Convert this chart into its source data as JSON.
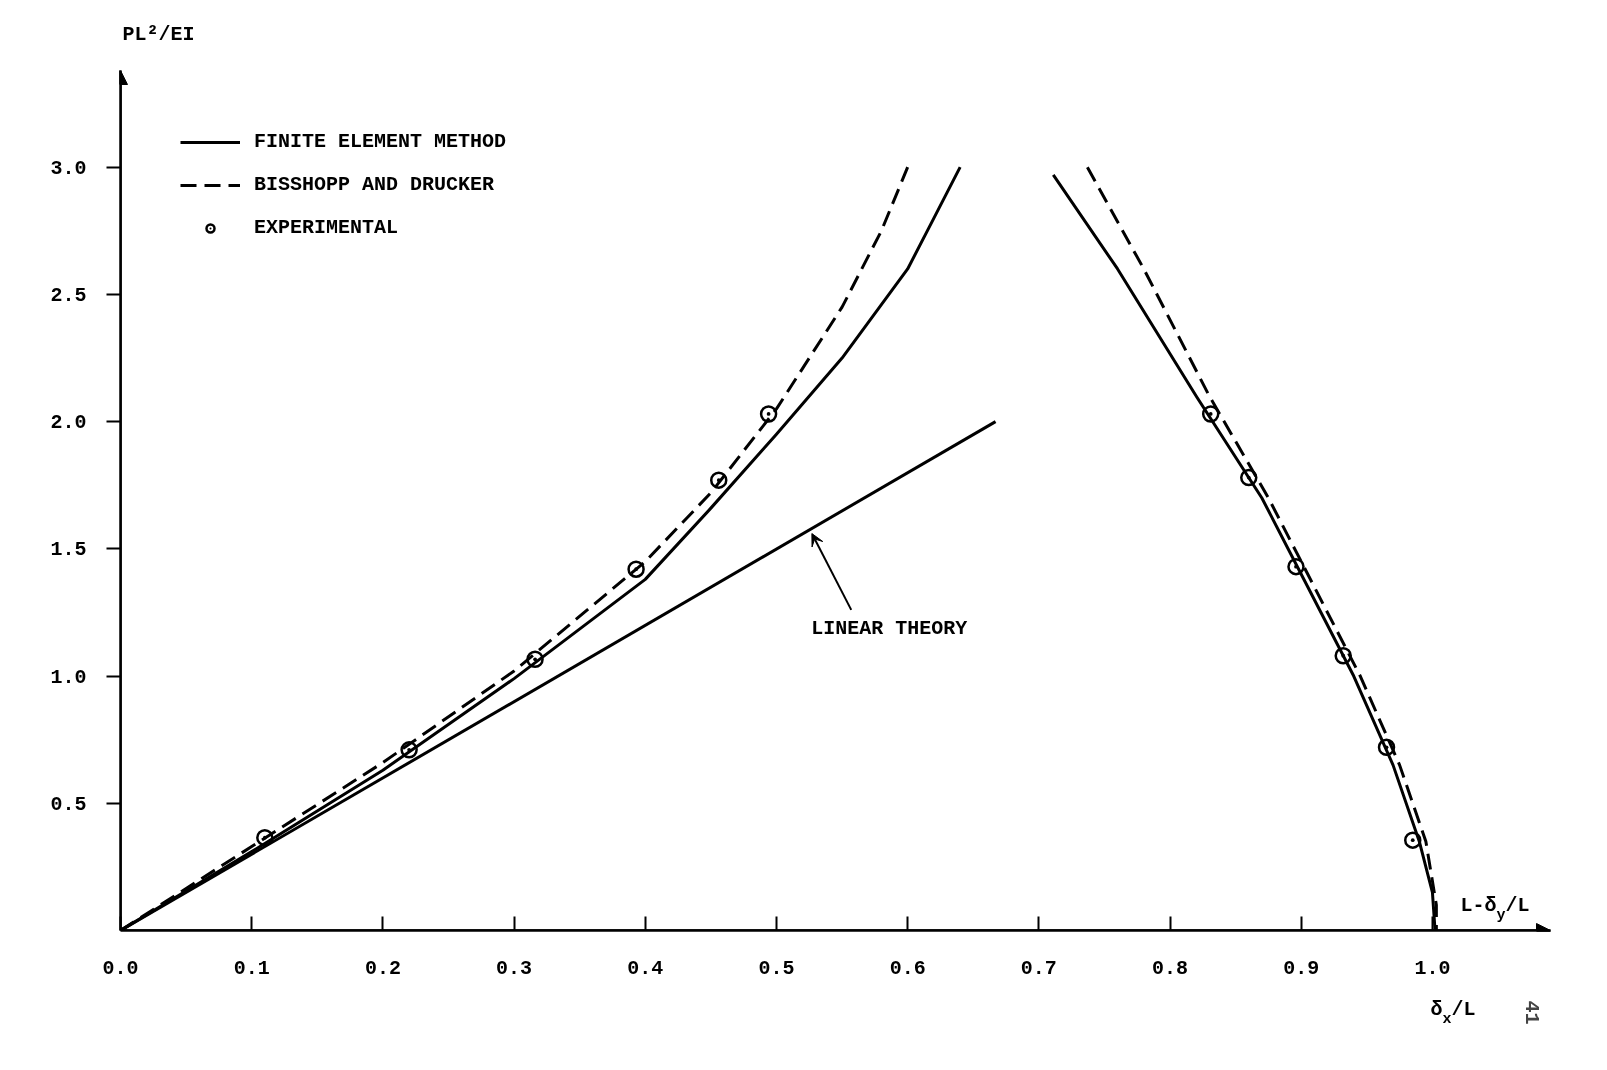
{
  "chart_data": {
    "type": "line",
    "xlabel": "δ$_{x}$/L",
    "ylabel": "PL²/EI",
    "xlim": [
      0,
      1.09
    ],
    "ylim": [
      0,
      3.38
    ],
    "xticks": [
      {
        "value": 0,
        "label": "0.0"
      },
      0.1,
      0.2,
      0.3,
      0.4,
      0.5,
      0.6,
      0.7,
      0.8,
      0.9,
      {
        "value": 1,
        "label": "1.0"
      }
    ],
    "yticks": [
      0.5,
      {
        "value": 1,
        "label": "1.0"
      },
      1.5,
      {
        "value": 2,
        "label": "2.0"
      },
      2.5,
      {
        "value": 3,
        "label": "3.0"
      }
    ],
    "grid": false,
    "legend": "top left",
    "series": [
      {
        "name": "FINITE ELEMENT METHOD",
        "line_style": "solid",
        "color": "#000000",
        "x": [
          0,
          0.1,
          0.2,
          0.3,
          0.4,
          0.45,
          0.5,
          0.55,
          0.6,
          0.62,
          0.64
        ],
        "values": [
          0,
          0.31,
          0.63,
          0.99,
          1.38,
          1.66,
          1.95,
          2.25,
          2.6,
          2.8,
          3.0
        ]
      },
      {
        "line_style": "solid",
        "color": "#000000",
        "x": [
          0.711,
          0.76,
          0.82,
          0.87,
          0.9,
          0.94,
          0.97,
          0.99,
          1.0,
          1.002
        ],
        "values": [
          2.97,
          2.6,
          2.1,
          1.7,
          1.4,
          1.0,
          0.65,
          0.35,
          0.15,
          0
        ]
      },
      {
        "name": "BISSHOPP AND DRUCKER",
        "line_style": "dashed",
        "color": "#000000",
        "x": [
          0,
          0.1,
          0.2,
          0.3,
          0.4,
          0.45,
          0.5,
          0.55,
          0.58,
          0.6
        ],
        "values": [
          0,
          0.33,
          0.66,
          1.02,
          1.45,
          1.72,
          2.05,
          2.45,
          2.75,
          3.0
        ]
      },
      {
        "line_style": "dashed",
        "color": "#000000",
        "x": [
          0.737,
          0.78,
          0.83,
          0.875,
          0.905,
          0.945,
          0.975,
          0.995,
          1.003,
          1.003
        ],
        "values": [
          3.0,
          2.6,
          2.1,
          1.7,
          1.4,
          1.0,
          0.65,
          0.35,
          0.1,
          0
        ]
      },
      {
        "name": "EXPERIMENTAL",
        "type": "scatter",
        "marker": "circle",
        "color": "#000000",
        "x": [
          0.11,
          0.22,
          0.316,
          0.393,
          0.456,
          0.494
        ],
        "values": [
          0.365,
          0.71,
          1.066,
          1.42,
          1.77,
          2.03
        ]
      },
      {
        "type": "scatter",
        "marker": "circle",
        "color": "#000000",
        "x": [
          0.831,
          0.86,
          0.896,
          0.932,
          0.965,
          0.985
        ],
        "values": [
          2.03,
          1.78,
          1.43,
          1.08,
          0.72,
          0.355
        ]
      },
      {
        "line_style": "solid",
        "color": "#000000",
        "x": [
          0,
          0.667
        ],
        "values": [
          0,
          2.0
        ]
      }
    ],
    "annotations": [
      {
        "text": "LINEAR THEORY",
        "x": 0.527,
        "y": 1.56
      },
      "L-δ$_{y}$/L",
      "41"
    ]
  }
}
